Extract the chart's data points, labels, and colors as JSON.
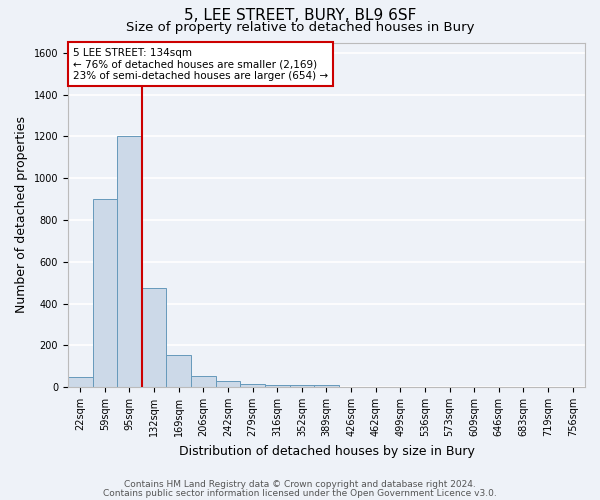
{
  "title": "5, LEE STREET, BURY, BL9 6SF",
  "subtitle": "Size of property relative to detached houses in Bury",
  "xlabel": "Distribution of detached houses by size in Bury",
  "ylabel": "Number of detached properties",
  "bar_labels": [
    "22sqm",
    "59sqm",
    "95sqm",
    "132sqm",
    "169sqm",
    "206sqm",
    "242sqm",
    "279sqm",
    "316sqm",
    "352sqm",
    "389sqm",
    "426sqm",
    "462sqm",
    "499sqm",
    "536sqm",
    "573sqm",
    "609sqm",
    "646sqm",
    "683sqm",
    "719sqm",
    "756sqm"
  ],
  "bar_values": [
    50,
    900,
    1200,
    475,
    155,
    55,
    30,
    15,
    12,
    12,
    12,
    0,
    0,
    0,
    0,
    0,
    0,
    0,
    0,
    0,
    0
  ],
  "bar_color": "#ccd9e8",
  "bar_edge_color": "#6699bb",
  "background_color": "#eef2f8",
  "grid_color": "#ffffff",
  "vline_color": "#cc0000",
  "annotation_text": "5 LEE STREET: 134sqm\n← 76% of detached houses are smaller (2,169)\n23% of semi-detached houses are larger (654) →",
  "annotation_box_color": "#ffffff",
  "annotation_box_edge": "#cc0000",
  "ylim": [
    0,
    1650
  ],
  "yticks": [
    0,
    200,
    400,
    600,
    800,
    1000,
    1200,
    1400,
    1600
  ],
  "footnote_line1": "Contains HM Land Registry data © Crown copyright and database right 2024.",
  "footnote_line2": "Contains public sector information licensed under the Open Government Licence v3.0.",
  "title_fontsize": 11,
  "subtitle_fontsize": 9.5,
  "axis_label_fontsize": 9,
  "tick_fontsize": 7,
  "annotation_fontsize": 7.5,
  "footnote_fontsize": 6.5
}
